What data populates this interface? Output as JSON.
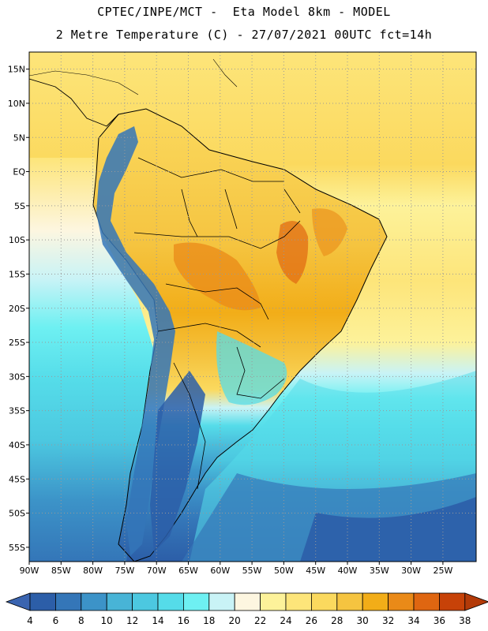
{
  "header": {
    "line1": "CPTEC/INPE/MCT -  Eta Model 8km - MODEL",
    "line2": "2 Metre Temperature (C) - 27/07/2021 00UTC fct=14h"
  },
  "map": {
    "region": "South America",
    "lat_labels": [
      "15N",
      "10N",
      "5N",
      "EQ",
      "5S",
      "10S",
      "15S",
      "20S",
      "25S",
      "30S",
      "35S",
      "40S",
      "45S",
      "50S",
      "55S"
    ],
    "lon_labels": [
      "90W",
      "85W",
      "80W",
      "75W",
      "70W",
      "65W",
      "60W",
      "55W",
      "50W",
      "45W",
      "40W",
      "35W",
      "30W",
      "25W"
    ]
  },
  "colorbar": {
    "labels": [
      "4",
      "6",
      "8",
      "10",
      "12",
      "14",
      "16",
      "18",
      "20",
      "22",
      "24",
      "26",
      "28",
      "30",
      "32",
      "34",
      "36",
      "38"
    ],
    "low_color": "#3a64b0",
    "high_color": "#b33a08",
    "colors": [
      "#2c5ea8",
      "#3476b8",
      "#3c93c8",
      "#48b4d6",
      "#4cc8e0",
      "#55dce9",
      "#6ef0f2",
      "#c9f3f6",
      "#fdf6e0",
      "#fdf29a",
      "#fde57a",
      "#fbd95e",
      "#f5c440",
      "#f2ad18",
      "#ea8a18",
      "#df6611",
      "#c74208"
    ]
  },
  "colors": {
    "ocean_north": "#fbde6a",
    "ocean_south": "#2c5ea8",
    "land_warm": "#f5c440",
    "land_hot": "#ea8a18",
    "andes": "#3476b8",
    "patagonia": "#2c5ea8"
  }
}
